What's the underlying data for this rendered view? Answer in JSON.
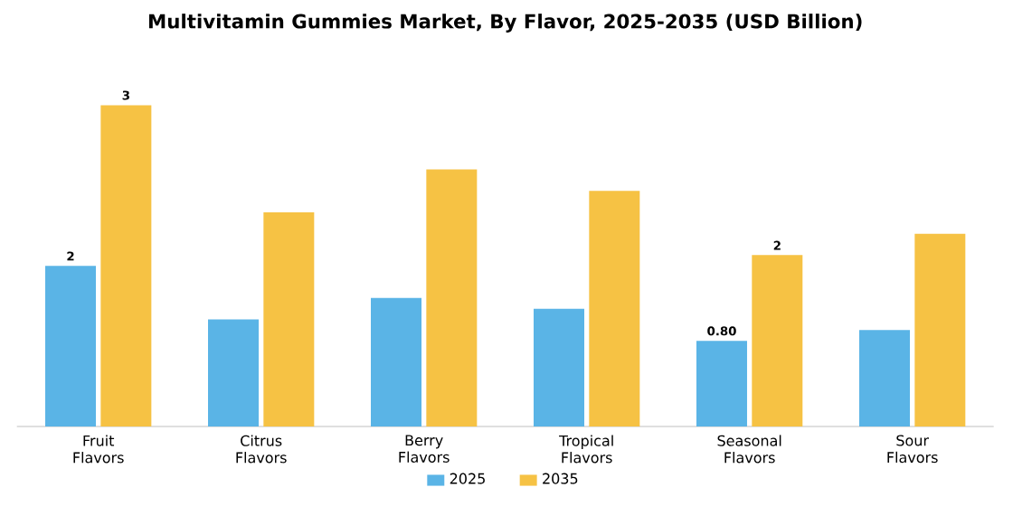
{
  "chart_data": {
    "type": "bar",
    "title": "Multivitamin Gummies Market, By Flavor, 2025-2035 (USD Billion)",
    "categories": [
      "Fruit Flavors",
      "Citrus Flavors",
      "Berry Flavors",
      "Tropical Flavors",
      "Seasonal Flavors",
      "Sour Flavors"
    ],
    "series": [
      {
        "name": "2025",
        "color": "#5ab4e6",
        "values": [
          1.5,
          1.0,
          1.2,
          1.1,
          0.8,
          0.9
        ],
        "value_labels": [
          "2",
          null,
          null,
          null,
          "0.80",
          null
        ]
      },
      {
        "name": "2035",
        "color": "#f6c244",
        "values": [
          3.0,
          2.0,
          2.4,
          2.2,
          1.6,
          1.8
        ],
        "value_labels": [
          "3",
          null,
          null,
          null,
          "2",
          null
        ]
      }
    ],
    "legend": "bottom"
  }
}
